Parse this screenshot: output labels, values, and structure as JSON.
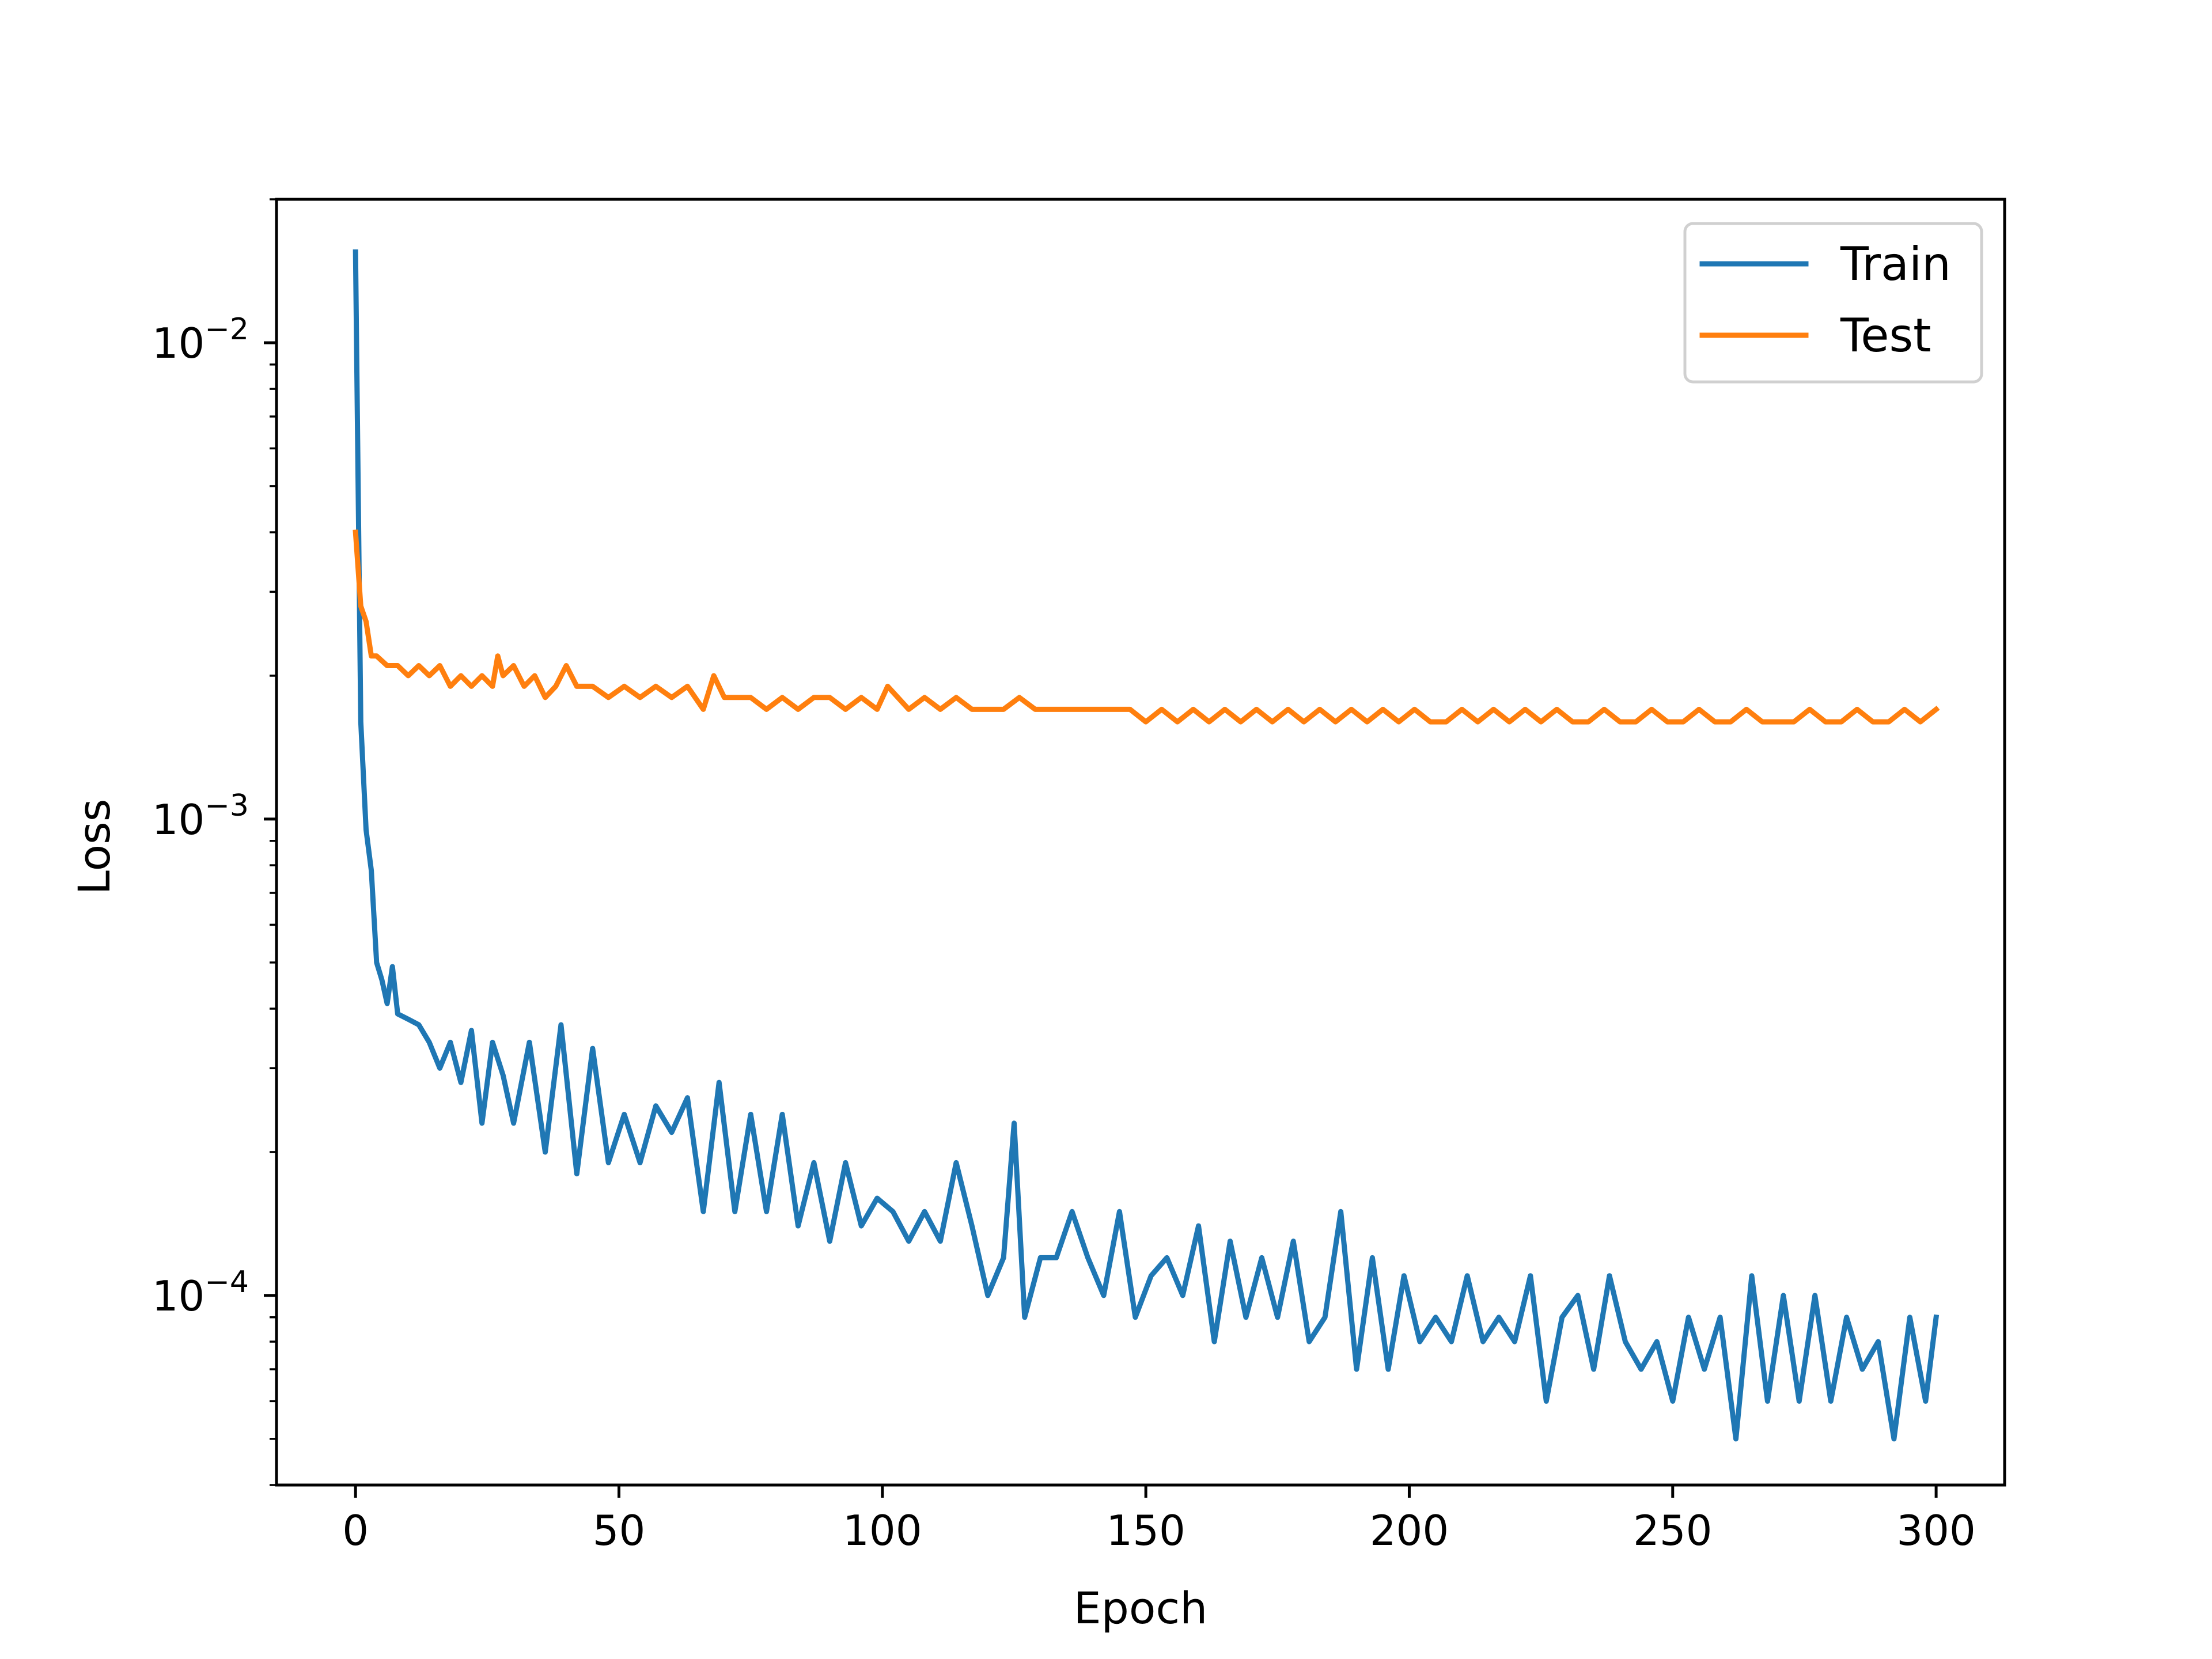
{
  "chart_data": {
    "type": "line",
    "title": "",
    "xlabel": "Epoch",
    "ylabel": "Loss",
    "xlim": [
      -15,
      313
    ],
    "ylim": [
      4e-05,
      0.02
    ],
    "y_scale": "log",
    "x_ticks": [
      0,
      50,
      100,
      150,
      200,
      250,
      300
    ],
    "x_tick_labels": [
      "0",
      "50",
      "100",
      "150",
      "200",
      "250",
      "300"
    ],
    "y_ticks": [
      {
        "value": 0.0001,
        "base": "10",
        "exponent": "−4"
      },
      {
        "value": 0.001,
        "base": "10",
        "exponent": "−3"
      },
      {
        "value": 0.01,
        "base": "10",
        "exponent": "−2"
      }
    ],
    "grid": false,
    "legend_position": "upper right",
    "legend": [
      "Train",
      "Test"
    ],
    "series": [
      {
        "name": "Train",
        "color": "#1f77b4",
        "x": [
          0,
          1,
          2,
          3,
          4,
          5,
          6,
          7,
          8,
          10,
          12,
          14,
          16,
          18,
          20,
          22,
          24,
          26,
          28,
          30,
          33,
          36,
          39,
          42,
          45,
          48,
          51,
          54,
          57,
          60,
          63,
          66,
          69,
          72,
          75,
          78,
          81,
          84,
          87,
          90,
          93,
          96,
          99,
          102,
          105,
          108,
          111,
          114,
          117,
          120,
          123,
          125,
          127,
          130,
          133,
          136,
          139,
          142,
          145,
          148,
          151,
          154,
          157,
          160,
          163,
          166,
          169,
          172,
          175,
          178,
          181,
          184,
          187,
          190,
          193,
          196,
          199,
          202,
          205,
          208,
          211,
          214,
          217,
          220,
          223,
          226,
          229,
          232,
          235,
          238,
          241,
          244,
          247,
          250,
          253,
          256,
          259,
          262,
          265,
          268,
          271,
          274,
          277,
          280,
          283,
          286,
          289,
          292,
          295,
          298,
          300
        ],
        "values": [
          0.0155,
          0.0016,
          0.00095,
          0.00078,
          0.0005,
          0.00046,
          0.00041,
          0.00049,
          0.00039,
          0.00038,
          0.00037,
          0.00034,
          0.0003,
          0.00034,
          0.00028,
          0.00036,
          0.00023,
          0.00034,
          0.00029,
          0.00023,
          0.00034,
          0.0002,
          0.00037,
          0.00018,
          0.00033,
          0.00019,
          0.00024,
          0.00019,
          0.00025,
          0.00022,
          0.00026,
          0.00015,
          0.00028,
          0.00015,
          0.00024,
          0.00015,
          0.00024,
          0.00014,
          0.00019,
          0.00013,
          0.00019,
          0.00014,
          0.00016,
          0.00015,
          0.00013,
          0.00015,
          0.00013,
          0.00019,
          0.00014,
          0.0001,
          0.00012,
          0.00023,
          9e-05,
          0.00012,
          0.00012,
          0.00015,
          0.00012,
          0.0001,
          0.00015,
          9e-05,
          0.00011,
          0.00012,
          0.0001,
          0.00014,
          8e-05,
          0.00013,
          9e-05,
          0.00012,
          9e-05,
          0.00013,
          8e-05,
          9e-05,
          0.00015,
          7e-05,
          0.00012,
          7e-05,
          0.00011,
          8e-05,
          9e-05,
          8e-05,
          0.00011,
          8e-05,
          9e-05,
          8e-05,
          0.00011,
          6e-05,
          9e-05,
          0.0001,
          7e-05,
          0.00011,
          8e-05,
          7e-05,
          8e-05,
          6e-05,
          9e-05,
          7e-05,
          9e-05,
          5e-05,
          0.00011,
          6e-05,
          0.0001,
          6e-05,
          0.0001,
          6e-05,
          9e-05,
          7e-05,
          8e-05,
          5e-05,
          9e-05,
          6e-05,
          9e-05
        ]
      },
      {
        "name": "Test",
        "color": "#ff7f0e",
        "x": [
          0,
          1,
          2,
          3,
          4,
          6,
          8,
          10,
          12,
          14,
          16,
          18,
          20,
          22,
          24,
          26,
          27,
          28,
          30,
          32,
          34,
          36,
          38,
          40,
          42,
          45,
          48,
          51,
          54,
          57,
          60,
          63,
          66,
          68,
          70,
          72,
          75,
          78,
          81,
          84,
          87,
          90,
          93,
          96,
          99,
          101,
          105,
          108,
          111,
          114,
          117,
          120,
          123,
          126,
          129,
          132,
          135,
          138,
          141,
          144,
          147,
          150,
          153,
          156,
          159,
          162,
          165,
          168,
          171,
          174,
          177,
          180,
          183,
          186,
          189,
          192,
          195,
          198,
          201,
          204,
          207,
          210,
          213,
          216,
          219,
          222,
          225,
          228,
          231,
          234,
          237,
          240,
          243,
          246,
          249,
          252,
          255,
          258,
          261,
          264,
          267,
          270,
          273,
          276,
          279,
          282,
          285,
          288,
          291,
          294,
          297,
          300
        ],
        "values": [
          0.004,
          0.0028,
          0.0026,
          0.0022,
          0.0022,
          0.0021,
          0.0021,
          0.002,
          0.0021,
          0.002,
          0.0021,
          0.0019,
          0.002,
          0.0019,
          0.002,
          0.0019,
          0.0022,
          0.002,
          0.0021,
          0.0019,
          0.002,
          0.0018,
          0.0019,
          0.0021,
          0.0019,
          0.0019,
          0.0018,
          0.0019,
          0.0018,
          0.0019,
          0.0018,
          0.0019,
          0.0017,
          0.002,
          0.0018,
          0.0018,
          0.0018,
          0.0017,
          0.0018,
          0.0017,
          0.0018,
          0.0018,
          0.0017,
          0.0018,
          0.0017,
          0.0019,
          0.0017,
          0.0018,
          0.0017,
          0.0018,
          0.0017,
          0.0017,
          0.0017,
          0.0018,
          0.0017,
          0.0017,
          0.0017,
          0.0017,
          0.0017,
          0.0017,
          0.0017,
          0.0016,
          0.0017,
          0.0016,
          0.0017,
          0.0016,
          0.0017,
          0.0016,
          0.0017,
          0.0016,
          0.0017,
          0.0016,
          0.0017,
          0.0016,
          0.0017,
          0.0016,
          0.0017,
          0.0016,
          0.0017,
          0.0016,
          0.0016,
          0.0017,
          0.0016,
          0.0017,
          0.0016,
          0.0017,
          0.0016,
          0.0017,
          0.0016,
          0.0016,
          0.0017,
          0.0016,
          0.0016,
          0.0017,
          0.0016,
          0.0016,
          0.0017,
          0.0016,
          0.0016,
          0.0017,
          0.0016,
          0.0016,
          0.0016,
          0.0017,
          0.0016,
          0.0016,
          0.0017,
          0.0016,
          0.0016,
          0.0017,
          0.0016,
          0.0017
        ]
      }
    ]
  }
}
